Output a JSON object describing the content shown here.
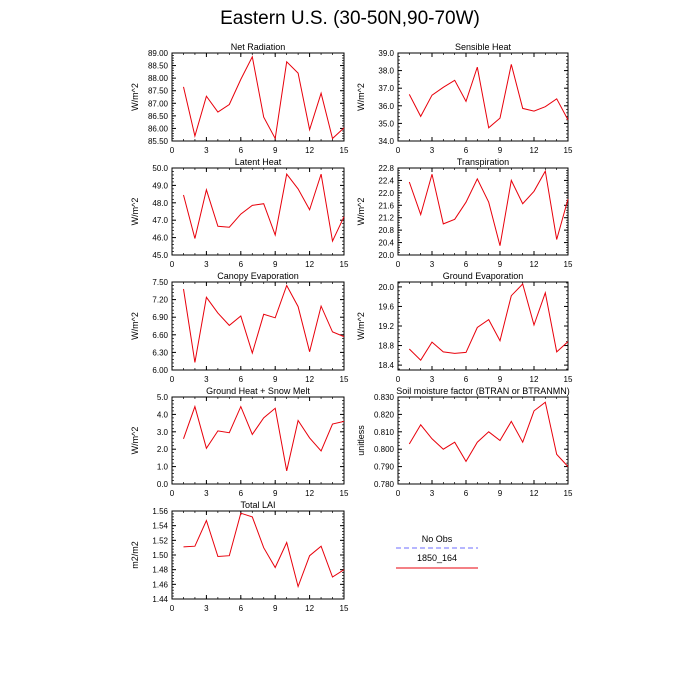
{
  "page_title": "Eastern U.S. (30-50N,90-70W)",
  "colors": {
    "series": "#e8000b",
    "no_obs": "#8a8aff",
    "axis": "#000000"
  },
  "legend": {
    "entries": [
      {
        "label": "No Obs",
        "style": "dashed"
      },
      {
        "label": "1850_164",
        "style": "solid"
      }
    ]
  },
  "chart_data": [
    {
      "type": "line",
      "title": "Net Radiation",
      "ylabel": "W/m^2",
      "xlim": [
        0,
        15
      ],
      "ylim": [
        85.5,
        89.0
      ],
      "xticks": [
        "0",
        "3",
        "6",
        "9",
        "12",
        "15"
      ],
      "yticks": [
        "85.50",
        "86.00",
        "86.50",
        "87.00",
        "87.50",
        "88.00",
        "88.50",
        "89.00"
      ],
      "series": [
        {
          "x": [
            1,
            2,
            3,
            4,
            5,
            6,
            7,
            8,
            9,
            10,
            11,
            12,
            13,
            14,
            15
          ],
          "values": [
            87.65,
            85.7,
            87.28,
            86.65,
            86.95,
            87.95,
            88.85,
            86.45,
            85.6,
            88.65,
            88.2,
            85.95,
            87.4,
            85.6,
            86.02
          ]
        }
      ]
    },
    {
      "type": "line",
      "title": "Sensible Heat",
      "ylabel": "W/m^2",
      "xlim": [
        0,
        15
      ],
      "ylim": [
        34.0,
        39.0
      ],
      "xticks": [
        "0",
        "3",
        "6",
        "9",
        "12",
        "15"
      ],
      "yticks": [
        "34.0",
        "35.0",
        "36.0",
        "37.0",
        "38.0",
        "39.0"
      ],
      "series": [
        {
          "x": [
            1,
            2,
            3,
            4,
            5,
            6,
            7,
            8,
            9,
            10,
            11,
            12,
            13,
            14,
            15
          ],
          "values": [
            36.65,
            35.4,
            36.6,
            37.05,
            37.45,
            36.25,
            38.2,
            34.75,
            35.3,
            38.35,
            35.85,
            35.7,
            35.95,
            36.4,
            35.2
          ]
        }
      ]
    },
    {
      "type": "line",
      "title": "Latent Heat",
      "ylabel": "W/m^2",
      "xlim": [
        0,
        15
      ],
      "ylim": [
        45.0,
        50.0
      ],
      "xticks": [
        "0",
        "3",
        "6",
        "9",
        "12",
        "15"
      ],
      "yticks": [
        "45.0",
        "46.0",
        "47.0",
        "48.0",
        "49.0",
        "50.0"
      ],
      "series": [
        {
          "x": [
            1,
            2,
            3,
            4,
            5,
            6,
            7,
            8,
            9,
            10,
            11,
            12,
            13,
            14,
            15
          ],
          "values": [
            48.45,
            45.95,
            48.75,
            46.65,
            46.6,
            47.35,
            47.85,
            47.95,
            46.15,
            49.65,
            48.8,
            47.6,
            49.65,
            45.8,
            47.2
          ]
        }
      ]
    },
    {
      "type": "line",
      "title": "Transpiration",
      "ylabel": "W/m^2",
      "xlim": [
        0,
        15
      ],
      "ylim": [
        20.0,
        22.8
      ],
      "xticks": [
        "0",
        "3",
        "6",
        "9",
        "12",
        "15"
      ],
      "yticks": [
        "20.0",
        "20.4",
        "20.8",
        "21.2",
        "21.6",
        "22.0",
        "22.4",
        "22.8"
      ],
      "series": [
        {
          "x": [
            1,
            2,
            3,
            4,
            5,
            6,
            7,
            8,
            9,
            10,
            11,
            12,
            13,
            14,
            15
          ],
          "values": [
            22.35,
            21.3,
            22.6,
            21.0,
            21.15,
            21.7,
            22.45,
            21.7,
            20.3,
            22.4,
            21.65,
            22.05,
            22.7,
            20.5,
            21.8
          ]
        }
      ]
    },
    {
      "type": "line",
      "title": "Canopy Evaporation",
      "ylabel": "W/m^2",
      "xlim": [
        0,
        15
      ],
      "ylim": [
        6.0,
        7.5
      ],
      "xticks": [
        "0",
        "3",
        "6",
        "9",
        "12",
        "15"
      ],
      "yticks": [
        "6.00",
        "6.30",
        "6.60",
        "6.90",
        "7.20",
        "7.50"
      ],
      "series": [
        {
          "x": [
            1,
            2,
            3,
            4,
            5,
            6,
            7,
            8,
            9,
            10,
            11,
            12,
            13,
            14,
            15
          ],
          "values": [
            7.38,
            6.13,
            7.24,
            6.97,
            6.76,
            6.92,
            6.29,
            6.95,
            6.89,
            7.44,
            7.08,
            6.31,
            7.09,
            6.65,
            6.57
          ]
        }
      ]
    },
    {
      "type": "line",
      "title": "Ground Evaporation",
      "ylabel": "W/m^2",
      "xlim": [
        0,
        15
      ],
      "ylim": [
        18.3,
        20.1
      ],
      "xticks": [
        "0",
        "3",
        "6",
        "9",
        "12",
        "15"
      ],
      "yticks": [
        "18.4",
        "18.8",
        "19.2",
        "19.6",
        "20.0"
      ],
      "series": [
        {
          "x": [
            1,
            2,
            3,
            4,
            5,
            6,
            7,
            8,
            9,
            10,
            11,
            12,
            13,
            14,
            15
          ],
          "values": [
            18.73,
            18.5,
            18.87,
            18.67,
            18.64,
            18.66,
            19.17,
            19.33,
            18.9,
            19.82,
            20.06,
            19.22,
            19.88,
            18.67,
            18.88
          ]
        }
      ]
    },
    {
      "type": "line",
      "title": "Ground Heat + Snow Melt",
      "ylabel": "W/m^2",
      "xlim": [
        0,
        15
      ],
      "ylim": [
        0.0,
        5.0
      ],
      "xticks": [
        "0",
        "3",
        "6",
        "9",
        "12",
        "15"
      ],
      "yticks": [
        "0.0",
        "1.0",
        "2.0",
        "3.0",
        "4.0",
        "5.0"
      ],
      "series": [
        {
          "x": [
            1,
            2,
            3,
            4,
            5,
            6,
            7,
            8,
            9,
            10,
            11,
            12,
            13,
            14,
            15
          ],
          "values": [
            2.6,
            4.45,
            2.05,
            3.05,
            2.95,
            4.45,
            2.85,
            3.8,
            4.35,
            0.75,
            3.65,
            2.65,
            1.9,
            3.45,
            3.6
          ]
        }
      ]
    },
    {
      "type": "line",
      "title": "Soil moisture factor (BTRAN or BTRANMN)",
      "ylabel": "unitless",
      "xlim": [
        0,
        15
      ],
      "ylim": [
        0.78,
        0.83
      ],
      "xticks": [
        "0",
        "3",
        "6",
        "9",
        "12",
        "15"
      ],
      "yticks": [
        "0.780",
        "0.790",
        "0.800",
        "0.810",
        "0.820",
        "0.830"
      ],
      "series": [
        {
          "x": [
            1,
            2,
            3,
            4,
            5,
            6,
            7,
            8,
            9,
            10,
            11,
            12,
            13,
            14,
            15
          ],
          "values": [
            0.803,
            0.814,
            0.806,
            0.8,
            0.804,
            0.793,
            0.804,
            0.81,
            0.805,
            0.816,
            0.804,
            0.822,
            0.827,
            0.797,
            0.79
          ]
        }
      ]
    },
    {
      "type": "line",
      "title": "Total LAI",
      "ylabel": "m2/m2",
      "xlim": [
        0,
        15
      ],
      "ylim": [
        1.44,
        1.56
      ],
      "xticks": [
        "0",
        "3",
        "6",
        "9",
        "12",
        "15"
      ],
      "yticks": [
        "1.44",
        "1.46",
        "1.48",
        "1.50",
        "1.52",
        "1.54",
        "1.56"
      ],
      "series": [
        {
          "x": [
            1,
            2,
            3,
            4,
            5,
            6,
            7,
            8,
            9,
            10,
            11,
            12,
            13,
            14,
            15
          ],
          "values": [
            1.511,
            1.512,
            1.547,
            1.498,
            1.499,
            1.557,
            1.552,
            1.51,
            1.483,
            1.517,
            1.457,
            1.499,
            1.512,
            1.47,
            1.48
          ]
        }
      ]
    }
  ]
}
